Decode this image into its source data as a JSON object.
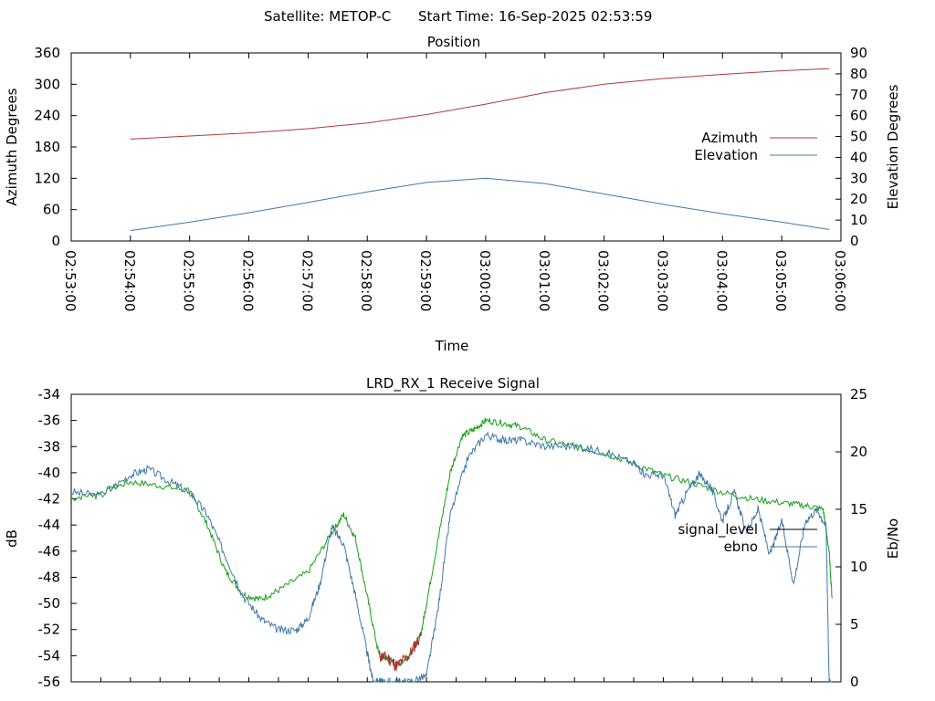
{
  "header": {
    "satellite_label": "Satellite: METOP-C",
    "start_time_label": "Start Time: 16-Sep-2025 02:53:59"
  },
  "colors": {
    "azimuth": "#b03a3a",
    "elevation": "#3f78a8",
    "signal": "#14a014",
    "signal_low": "#b03030",
    "ebno": "#3f78a8",
    "legend_signal": "#000000"
  },
  "chart_data": [
    {
      "type": "line",
      "title": "Position",
      "xlabel": "Time",
      "ylabel": "Azimuth Degrees",
      "y2label": "Elevation Degrees",
      "xticks": [
        "02:53:00",
        "02:54:00",
        "02:55:00",
        "02:56:00",
        "02:57:00",
        "02:58:00",
        "02:59:00",
        "03:00:00",
        "03:01:00",
        "03:02:00",
        "03:03:00",
        "03:04:00",
        "03:05:00",
        "03:06:00"
      ],
      "ylim": [
        0,
        360
      ],
      "y2lim": [
        0,
        90
      ],
      "yticks": [
        "0",
        "60",
        "120",
        "180",
        "240",
        "300",
        "360"
      ],
      "y2ticks": [
        "0",
        "10",
        "20",
        "30",
        "40",
        "50",
        "60",
        "70",
        "80",
        "90"
      ],
      "legend_position": "right",
      "grid": false,
      "series": [
        {
          "name": "Azimuth",
          "axis": "left",
          "x_minutes": [
            1,
            2,
            3,
            4,
            5,
            6,
            7,
            8,
            9,
            10,
            11,
            12,
            12.8
          ],
          "values": [
            195,
            201,
            207,
            215,
            226,
            242,
            262,
            284,
            300,
            311,
            319,
            326,
            330
          ]
        },
        {
          "name": "Elevation",
          "axis": "right",
          "x_minutes": [
            1,
            2,
            3,
            4,
            5,
            6,
            7,
            8,
            9,
            10,
            11,
            12,
            12.8
          ],
          "values": [
            5,
            9,
            13.5,
            18.5,
            23.5,
            28,
            30,
            27.5,
            22.5,
            17.5,
            13,
            9,
            5.5
          ]
        }
      ]
    },
    {
      "type": "line",
      "title": "LRD_RX_1 Receive Signal",
      "ylabel": "dB",
      "y2label": "Eb/No",
      "ylim": [
        -56,
        -34
      ],
      "y2lim": [
        0,
        25
      ],
      "yticks": [
        "-56",
        "-54",
        "-52",
        "-50",
        "-48",
        "-46",
        "-44",
        "-42",
        "-40",
        "-38",
        "-36",
        "-34"
      ],
      "y2ticks": [
        "0",
        "5",
        "10",
        "15",
        "20",
        "25"
      ],
      "legend_position": "right",
      "grid": false,
      "series": [
        {
          "name": "signal_level",
          "axis": "left",
          "x_minutes": [
            0,
            0.5,
            1,
            1.5,
            2,
            2.3,
            2.6,
            2.9,
            3.2,
            3.5,
            4,
            4.4,
            4.6,
            4.8,
            5,
            5.2,
            5.35,
            5.5,
            5.7,
            5.9,
            6,
            6.2,
            6.4,
            6.6,
            6.8,
            7,
            7.3,
            7.6,
            8,
            8.5,
            9,
            9.5,
            10,
            10.5,
            11,
            11.5,
            12,
            12.4,
            12.7,
            12.8,
            12.85
          ],
          "values": [
            -42,
            -41.5,
            -40.7,
            -41,
            -41.4,
            -44,
            -47.5,
            -49.3,
            -49.7,
            -49,
            -47.6,
            -44.6,
            -43.2,
            -45,
            -49.5,
            -54,
            -54.2,
            -54.8,
            -54,
            -52.5,
            -50,
            -45,
            -40,
            -37.2,
            -36.7,
            -36,
            -36.2,
            -36.5,
            -37.5,
            -38,
            -38.5,
            -39.3,
            -40.2,
            -40.8,
            -41.5,
            -42,
            -42.3,
            -42.5,
            -42.8,
            -46,
            -49.6
          ]
        },
        {
          "name": "ebno",
          "axis": "right",
          "x_minutes": [
            0,
            0.5,
            1,
            1.3,
            1.7,
            2,
            2.3,
            2.6,
            2.9,
            3.2,
            3.5,
            3.8,
            4,
            4.2,
            4.4,
            4.6,
            4.8,
            5,
            5.1,
            5.2,
            5.3,
            5.5,
            5.7,
            6,
            6.2,
            6.4,
            6.7,
            7,
            7.3,
            7.6,
            8,
            8.5,
            9,
            9.5,
            9.7,
            10,
            10.2,
            10.4,
            10.6,
            10.8,
            11,
            11.2,
            11.4,
            11.6,
            11.8,
            12,
            12.2,
            12.4,
            12.6,
            12.75,
            12.8,
            12.85
          ],
          "values": [
            16.5,
            16.2,
            18,
            18.5,
            17.3,
            16.5,
            14.5,
            11,
            7.5,
            5.5,
            4.5,
            4.5,
            5.5,
            8.5,
            13.5,
            12,
            7.5,
            2.5,
            0,
            0,
            0,
            0,
            0,
            0.5,
            6.5,
            14.5,
            19.5,
            21.5,
            21,
            21,
            20.5,
            20.5,
            20,
            19,
            18,
            18,
            14.5,
            16.5,
            18,
            17,
            14,
            16.5,
            13,
            15,
            11,
            14,
            8.5,
            14,
            15,
            13.5,
            0,
            0
          ]
        }
      ]
    }
  ]
}
